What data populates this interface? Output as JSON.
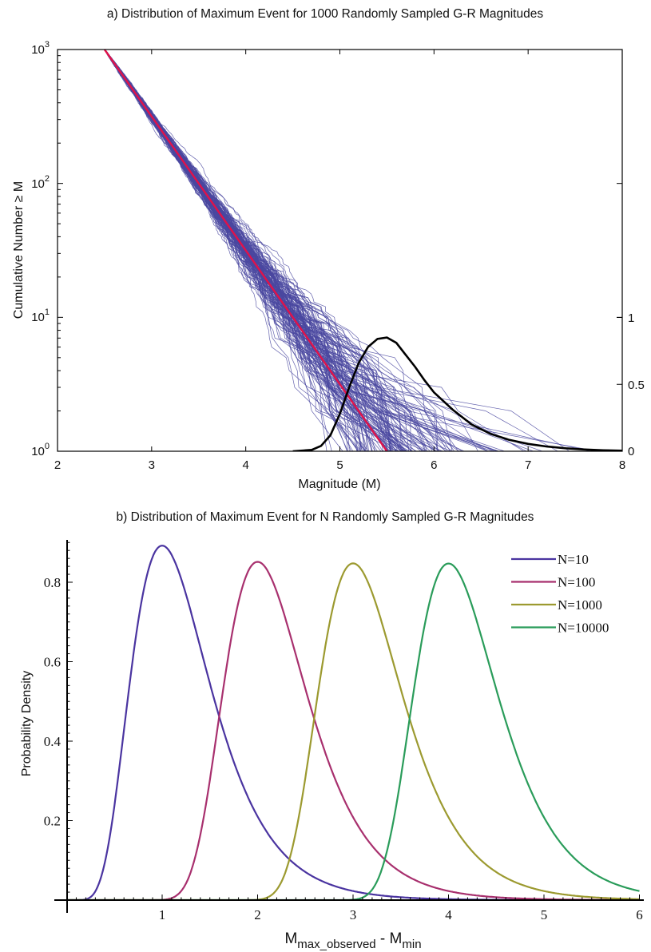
{
  "chart_data": [
    {
      "panel": "a",
      "type": "line",
      "title": "a) Distribution of Maximum Event for 1000 Randomly Sampled G-R Magnitudes",
      "xlabel": "Magnitude (M)",
      "ylabel": "Cumulative Number ≥ M",
      "xlim": [
        2,
        8
      ],
      "ylim": [
        1,
        1000
      ],
      "yscale": "log",
      "x_ticks": [
        "2",
        "3",
        "4",
        "5",
        "6",
        "7",
        "8"
      ],
      "y_ticks": [
        {
          "base": "10",
          "exp": "0",
          "value": 1
        },
        {
          "base": "10",
          "exp": "1",
          "value": 10
        },
        {
          "base": "10",
          "exp": "2",
          "value": 100
        },
        {
          "base": "10",
          "exp": "3",
          "value": 1000
        }
      ],
      "y2_ticks": [
        "0",
        "0.5",
        "1"
      ],
      "y2lim": [
        0,
        1
      ],
      "grid": false,
      "colors": {
        "samples": "#4a48a0",
        "fit": "#e0124a",
        "pdf": "#000000"
      },
      "gr_fit_line": {
        "x": [
          2.5,
          5.5
        ],
        "y": [
          1000,
          1
        ]
      },
      "sampled_catalogs": {
        "count_drawn": 140,
        "b_value": 1,
        "n_events": 1000,
        "m_min": 2.5
      },
      "max_event_pdf": {
        "x": [
          4.5,
          4.7,
          4.8,
          4.9,
          5.0,
          5.1,
          5.2,
          5.3,
          5.4,
          5.5,
          5.6,
          5.7,
          5.8,
          5.9,
          6.0,
          6.2,
          6.4,
          6.6,
          6.8,
          7.0,
          7.2,
          7.4,
          7.6,
          7.8,
          8.0
        ],
        "y": [
          0.0,
          0.01,
          0.04,
          0.12,
          0.28,
          0.48,
          0.66,
          0.78,
          0.84,
          0.85,
          0.81,
          0.72,
          0.63,
          0.53,
          0.44,
          0.31,
          0.2,
          0.13,
          0.085,
          0.055,
          0.035,
          0.022,
          0.013,
          0.007,
          0.004
        ]
      }
    },
    {
      "panel": "b",
      "type": "line",
      "title": "b) Distribution of Maximum Event for N Randomly Sampled G-R Magnitudes",
      "xlabel_main": "M",
      "xlabel_sub1": "max_observed",
      "xlabel_mid": " - M",
      "xlabel_sub2": "min",
      "ylabel": "Probability Density",
      "xlim": [
        -0.15,
        6.1
      ],
      "ylim": [
        0,
        0.9
      ],
      "x_ticks": [
        "1",
        "2",
        "3",
        "4",
        "5",
        "6"
      ],
      "y_ticks": [
        "0.2",
        "0.4",
        "0.6",
        "0.8"
      ],
      "grid": false,
      "legend_position": "top-right",
      "series": [
        {
          "name": "N=10",
          "color": "#4a34a0",
          "N": 10,
          "mode": 1.0,
          "peak": 0.893
        },
        {
          "name": "N=100",
          "color": "#a8306e",
          "N": 100,
          "mode": 2.0,
          "peak": 0.852
        },
        {
          "name": "N=1000",
          "color": "#9c9a30",
          "N": 1000,
          "mode": 3.0,
          "peak": 0.849
        },
        {
          "name": "N=10000",
          "color": "#2a9c5a",
          "N": 10000,
          "mode": 4.0,
          "peak": 0.848
        }
      ]
    }
  ]
}
